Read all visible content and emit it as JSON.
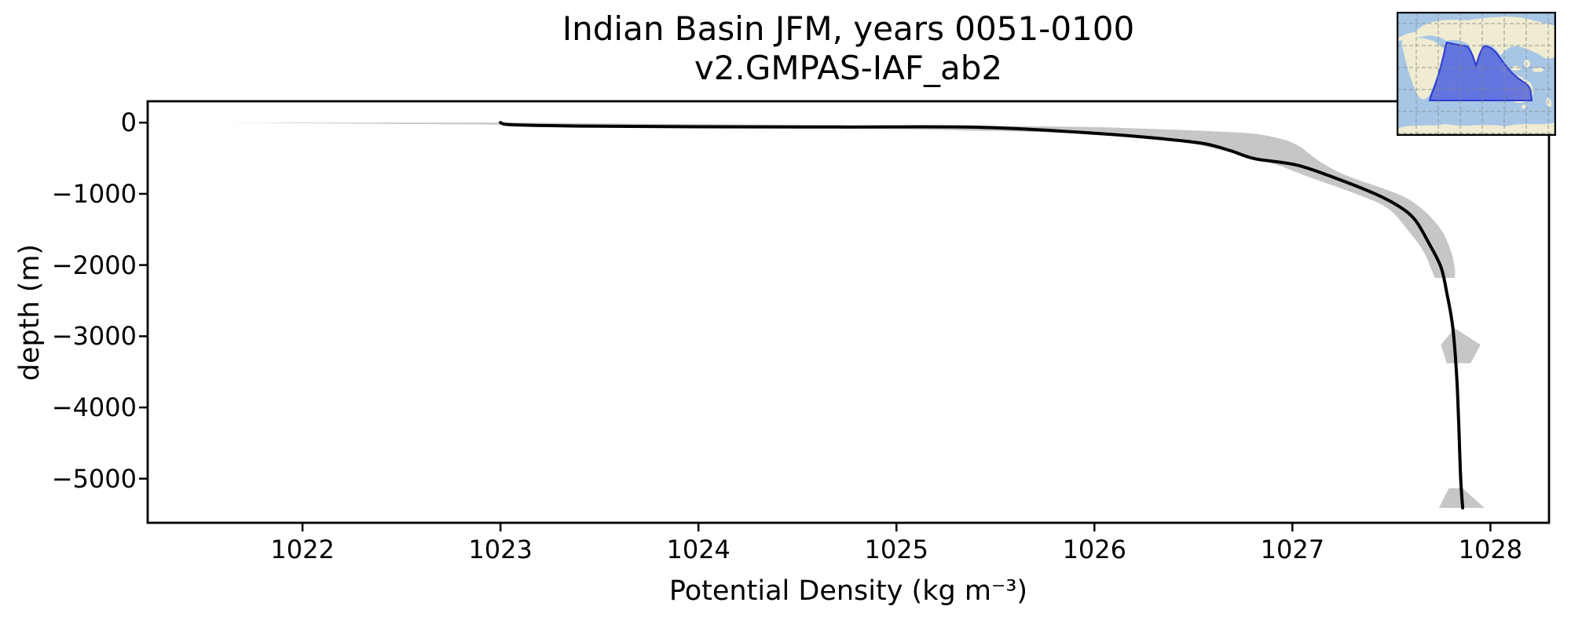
{
  "figure": {
    "title_line1": "Indian Basin JFM, years 0051-0100",
    "title_line2": "v2.GMPAS-IAF_ab2",
    "xlabel": "Potential Density (kg m⁻³)",
    "ylabel": "depth (m)"
  },
  "chart_data": {
    "type": "line",
    "title": "Indian Basin JFM, years 0051-0100 v2.GMPAS-IAF_ab2",
    "xlabel": "Potential Density (kg m⁻³)",
    "ylabel": "depth (m)",
    "xlim": [
      1021.218,
      1028.296
    ],
    "ylim": [
      -5620,
      300
    ],
    "grid": false,
    "legend": "none",
    "x_ticks": [
      1022,
      1023,
      1024,
      1025,
      1026,
      1027,
      1028
    ],
    "x_tick_labels": [
      "1022",
      "1023",
      "1024",
      "1025",
      "1026",
      "1027",
      "1028"
    ],
    "y_ticks": [
      0,
      -1000,
      -2000,
      -3000,
      -4000,
      -5000
    ],
    "y_tick_labels": [
      "0",
      "−1000",
      "−2000",
      "−3000",
      "−4000",
      "−5000"
    ],
    "series": [
      {
        "name": "mean potential density profile",
        "points": [
          [
            1023.0,
            0
          ],
          [
            1023.06,
            -30
          ],
          [
            1023.4,
            -48
          ],
          [
            1024.0,
            -58
          ],
          [
            1024.7,
            -62
          ],
          [
            1025.43,
            -66
          ],
          [
            1026.03,
            -154
          ],
          [
            1026.36,
            -231
          ],
          [
            1026.56,
            -298
          ],
          [
            1026.69,
            -397
          ],
          [
            1026.81,
            -507
          ],
          [
            1027.02,
            -595
          ],
          [
            1027.22,
            -782
          ],
          [
            1027.42,
            -1003
          ],
          [
            1027.54,
            -1179
          ],
          [
            1027.62,
            -1367
          ],
          [
            1027.69,
            -1697
          ],
          [
            1027.75,
            -2028
          ],
          [
            1027.78,
            -2392
          ],
          [
            1027.81,
            -2877
          ],
          [
            1027.83,
            -3571
          ],
          [
            1027.84,
            -4232
          ],
          [
            1027.85,
            -5003
          ],
          [
            1027.86,
            -5410
          ]
        ]
      }
    ],
    "band": {
      "name": "spread (min/max envelope)",
      "points": [
        [
          0,
          1021.55,
          1023.1
        ],
        [
          -15,
          1022.3,
          1023.7
        ],
        [
          -30,
          1023.1,
          1024.4
        ],
        [
          -45,
          1023.8,
          1025.3
        ],
        [
          -60,
          1024.4,
          1025.95
        ],
        [
          -80,
          1024.8,
          1026.2
        ],
        [
          -110,
          1025.35,
          1026.5
        ],
        [
          -150,
          1025.95,
          1026.78
        ],
        [
          -200,
          1026.22,
          1026.9
        ],
        [
          -270,
          1026.44,
          1026.99
        ],
        [
          -360,
          1026.6,
          1027.05
        ],
        [
          -470,
          1026.77,
          1027.1
        ],
        [
          -600,
          1026.93,
          1027.17
        ],
        [
          -750,
          1027.07,
          1027.28
        ],
        [
          -1000,
          1027.32,
          1027.53
        ],
        [
          -1200,
          1027.48,
          1027.65
        ],
        [
          -1500,
          1027.58,
          1027.75
        ],
        [
          -1800,
          1027.66,
          1027.8
        ],
        [
          -2050,
          1027.7,
          1027.82
        ],
        [
          -2180,
          1027.72,
          1027.82
        ]
      ]
    },
    "markers": [
      {
        "shape": "pentagon-blob",
        "points": [
          [
            1027.82,
            -2887
          ],
          [
            1027.95,
            -3120
          ],
          [
            1027.9,
            -3380
          ],
          [
            1027.78,
            -3380
          ],
          [
            1027.75,
            -3120
          ]
        ]
      },
      {
        "shape": "trapezoid-blob",
        "points": [
          [
            1027.79,
            -5135
          ],
          [
            1027.86,
            -5135
          ],
          [
            1027.97,
            -5410
          ],
          [
            1027.74,
            -5410
          ]
        ]
      }
    ],
    "colors": {
      "line": "#000000",
      "band": "#c6c6c6",
      "spine": "#000000"
    },
    "inset_map": {
      "region": "Indian Basin",
      "ocean": "#a7c6e6",
      "land": "#efecd2",
      "highlight_fill": "#5a6ade",
      "highlight_edge": "#2d3cd0",
      "gridline": "#8a8a8a"
    }
  }
}
